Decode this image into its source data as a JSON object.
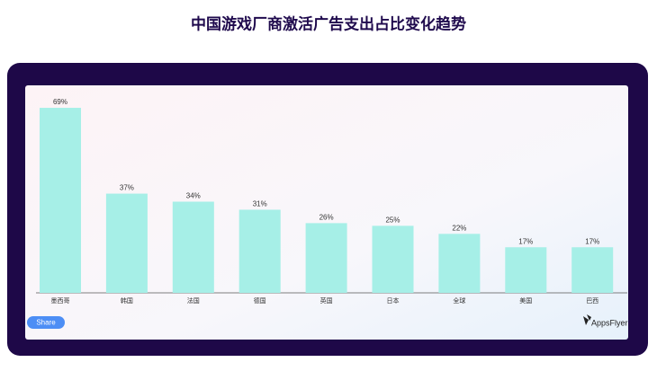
{
  "chart_data": {
    "type": "bar",
    "title": "中国游戏厂商激活广告支出占比变化趋势",
    "categories": [
      "墨西哥",
      "韩国",
      "法国",
      "德国",
      "英国",
      "日本",
      "全球",
      "美国",
      "巴西"
    ],
    "values": [
      69,
      37,
      34,
      31,
      26,
      25,
      22,
      17,
      17
    ],
    "value_labels": [
      "69%",
      "37%",
      "34%",
      "31%",
      "26%",
      "25%",
      "22%",
      "17%",
      "17%"
    ],
    "color": "#a6efe7"
  },
  "ui": {
    "share": "Share",
    "brand": "AppsFlyer"
  }
}
